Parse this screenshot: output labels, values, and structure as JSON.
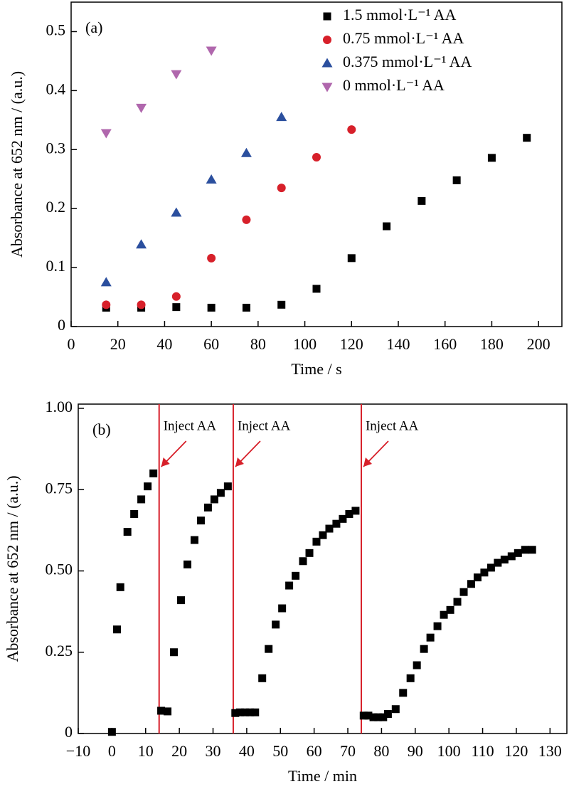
{
  "chart_data": [
    {
      "type": "scatter",
      "panel_label": "(a)",
      "x_label": "Time / s",
      "y_label": "Absorbance at 652 nm / (a.u.)",
      "xlim": [
        0,
        210
      ],
      "ylim": [
        0,
        0.55
      ],
      "xticks": [
        0,
        20,
        40,
        60,
        80,
        100,
        120,
        140,
        160,
        180,
        200
      ],
      "yticks": [
        0,
        0.1,
        0.2,
        0.3,
        0.4,
        0.5
      ],
      "legend": "upper right",
      "series": [
        {
          "name": "1.5 mmol·L⁻¹ AA",
          "color": "#000000",
          "marker": "square",
          "x": [
            15,
            30,
            45,
            60,
            75,
            90,
            105,
            120,
            135,
            150,
            165,
            180,
            195
          ],
          "values": [
            0.032,
            0.032,
            0.033,
            0.032,
            0.032,
            0.037,
            0.064,
            0.116,
            0.17,
            0.213,
            0.248,
            0.286,
            0.32
          ]
        },
        {
          "name": "0.75 mmol·L⁻¹ AA",
          "color": "#d7202a",
          "marker": "circle",
          "x": [
            15,
            30,
            45,
            60,
            75,
            90,
            105,
            120
          ],
          "values": [
            0.037,
            0.037,
            0.051,
            0.116,
            0.181,
            0.235,
            0.287,
            0.334
          ]
        },
        {
          "name": "0.375 mmol·L⁻¹ AA",
          "color": "#2b4f9e",
          "marker": "triangle",
          "x": [
            15,
            30,
            45,
            60,
            75,
            90
          ],
          "values": [
            0.075,
            0.139,
            0.193,
            0.249,
            0.294,
            0.355
          ]
        },
        {
          "name": "0 mmol·L⁻¹ AA",
          "color": "#b067ad",
          "marker": "triangle-down",
          "x": [
            15,
            30,
            45,
            60
          ],
          "values": [
            0.328,
            0.371,
            0.428,
            0.468
          ]
        }
      ]
    },
    {
      "type": "scatter",
      "panel_label": "(b)",
      "x_label": "Time / min",
      "y_label": "Absorbance at 652 nm / (a.u.)",
      "xlim": [
        -10,
        135
      ],
      "ylim": [
        0,
        1.013
      ],
      "xticks": [
        {
          "value": -10,
          "label": "−10"
        },
        0,
        10,
        20,
        30,
        40,
        50,
        60,
        70,
        80,
        90,
        100,
        110,
        120,
        130
      ],
      "yticks": [
        0,
        0.25,
        {
          "value": 0.5,
          "label": "0.50"
        },
        0.75,
        {
          "value": 1,
          "label": "1.00"
        }
      ],
      "vlines": [
        {
          "x": 14,
          "label": "Inject AA"
        },
        {
          "x": 36,
          "label": "Inject AA"
        },
        {
          "x": 74,
          "label": "Inject AA"
        }
      ],
      "vline_color": "#d7202a",
      "series": [
        {
          "color": "#000000",
          "marker": "square",
          "x": [
            0,
            1.5,
            2.5,
            4.6,
            6.6,
            8.7,
            10.6,
            12.3,
            14.6,
            16.5,
            18.4,
            20.5,
            22.4,
            24.5,
            26.4,
            28.5,
            30.4,
            32.3,
            34.4,
            36.6,
            38,
            39.5,
            41,
            42.5,
            44.6,
            46.5,
            48.6,
            50.5,
            52.6,
            54.5,
            56.7,
            58.6,
            60.7,
            62.6,
            64.5,
            66.6,
            68.5,
            70.4,
            72.3,
            74.7,
            76.1,
            77.6,
            79,
            80.5,
            81.9,
            84.2,
            86.4,
            88.6,
            90.5,
            92.6,
            94.5,
            96.6,
            98.5,
            100.4,
            102.5,
            104.4,
            106.6,
            108.5,
            110.5,
            112.5,
            114.5,
            116.5,
            118.6,
            120.5,
            122.6,
            124.7
          ],
          "values": [
            0.005,
            0.32,
            0.45,
            0.62,
            0.675,
            0.72,
            0.76,
            0.8,
            0.07,
            0.068,
            0.25,
            0.41,
            0.52,
            0.595,
            0.655,
            0.695,
            0.72,
            0.74,
            0.76,
            0.063,
            0.065,
            0.065,
            0.065,
            0.065,
            0.17,
            0.26,
            0.335,
            0.385,
            0.455,
            0.485,
            0.53,
            0.555,
            0.59,
            0.61,
            0.63,
            0.645,
            0.66,
            0.675,
            0.685,
            0.055,
            0.055,
            0.05,
            0.05,
            0.05,
            0.06,
            0.075,
            0.125,
            0.17,
            0.21,
            0.26,
            0.295,
            0.33,
            0.365,
            0.38,
            0.405,
            0.435,
            0.46,
            0.48,
            0.495,
            0.51,
            0.525,
            0.535,
            0.545,
            0.555,
            0.565,
            0.565
          ]
        }
      ]
    }
  ]
}
